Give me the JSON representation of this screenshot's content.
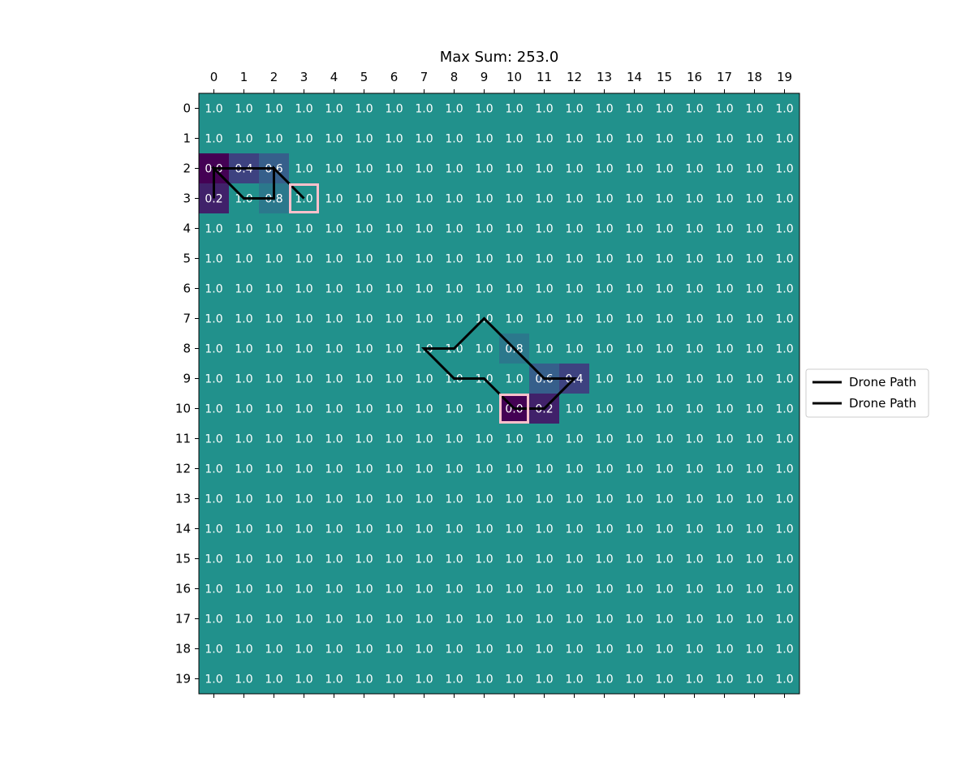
{
  "chart_data": {
    "type": "heatmap",
    "title": "Max Sum: 253.0",
    "xlabel": "",
    "ylabel": "",
    "rows": 20,
    "cols": 20,
    "x_ticks": [
      "0",
      "1",
      "2",
      "3",
      "4",
      "5",
      "6",
      "7",
      "8",
      "9",
      "10",
      "11",
      "12",
      "13",
      "14",
      "15",
      "16",
      "17",
      "18",
      "19"
    ],
    "y_ticks": [
      "0",
      "1",
      "2",
      "3",
      "4",
      "5",
      "6",
      "7",
      "8",
      "9",
      "10",
      "11",
      "12",
      "13",
      "14",
      "15",
      "16",
      "17",
      "18",
      "19"
    ],
    "default_value": 1.0,
    "value_range": [
      0.0,
      1.0
    ],
    "colormap": "viridis",
    "grid": false,
    "special_cells": [
      {
        "row": 2,
        "col": 0,
        "value": 0.0
      },
      {
        "row": 2,
        "col": 1,
        "value": 0.4
      },
      {
        "row": 2,
        "col": 2,
        "value": 0.6
      },
      {
        "row": 3,
        "col": 0,
        "value": 0.2
      },
      {
        "row": 3,
        "col": 2,
        "value": 0.8
      },
      {
        "row": 8,
        "col": 10,
        "value": 0.8
      },
      {
        "row": 9,
        "col": 11,
        "value": 0.6
      },
      {
        "row": 9,
        "col": 12,
        "value": 0.4
      },
      {
        "row": 10,
        "col": 10,
        "value": 0.0
      },
      {
        "row": 10,
        "col": 11,
        "value": 0.2
      }
    ],
    "paths": [
      {
        "name": "Drone Path",
        "color": "#000000",
        "points": [
          [
            0,
            3
          ],
          [
            0,
            2
          ],
          [
            1,
            3
          ],
          [
            2,
            3
          ],
          [
            2,
            2
          ],
          [
            0,
            2
          ],
          [
            1,
            3
          ],
          [
            2,
            3
          ],
          [
            2,
            2
          ],
          [
            3,
            3
          ]
        ]
      },
      {
        "name": "Drone Path",
        "color": "#000000",
        "points": [
          [
            10,
            10
          ],
          [
            11,
            10
          ],
          [
            12,
            9
          ],
          [
            11,
            9
          ],
          [
            10,
            8
          ],
          [
            9,
            7
          ],
          [
            8,
            8
          ],
          [
            7,
            8
          ],
          [
            8,
            9
          ],
          [
            9,
            9
          ],
          [
            10,
            10
          ]
        ]
      }
    ],
    "highlighted_cells": [
      {
        "row": 3,
        "col": 3,
        "color": "#ffc0cb"
      },
      {
        "row": 10,
        "col": 10,
        "color": "#ffc0cb"
      }
    ],
    "legend": {
      "placement": "center-right",
      "entries": [
        "Drone Path",
        "Drone Path"
      ]
    }
  }
}
